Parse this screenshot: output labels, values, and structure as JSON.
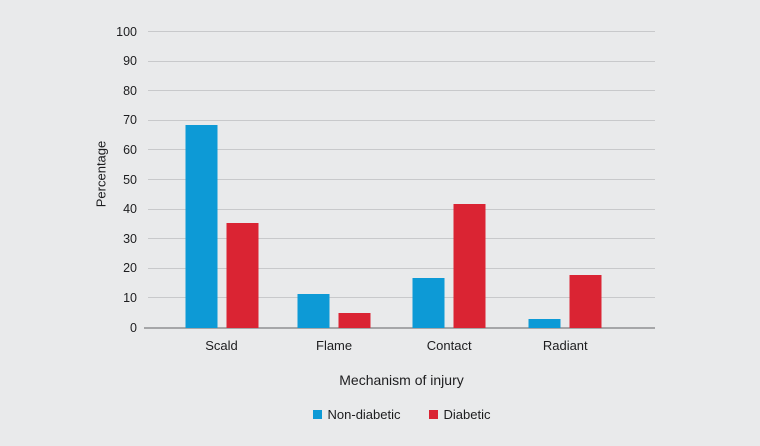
{
  "chart_data": {
    "type": "bar",
    "title": "",
    "xlabel": "Mechanism of injury",
    "ylabel": "Percentage",
    "ylim": [
      0,
      100
    ],
    "ytick_step": 10,
    "grid": true,
    "legend_position": "bottom-center",
    "categories": [
      "Scald",
      "Flame",
      "Contact",
      "Radiant"
    ],
    "series": [
      {
        "name": "Non-diabetic",
        "color": "#0d9ad6",
        "values": [
          68.5,
          11.5,
          17,
          3
        ]
      },
      {
        "name": "Diabetic",
        "color": "#da2433",
        "values": [
          35.5,
          5,
          42,
          18
        ]
      }
    ]
  },
  "colors": {
    "background": "#e9eaeb",
    "gridline": "#c8c9cb",
    "axis_line": "#a5a6a8",
    "text": "#1d1d1f"
  }
}
